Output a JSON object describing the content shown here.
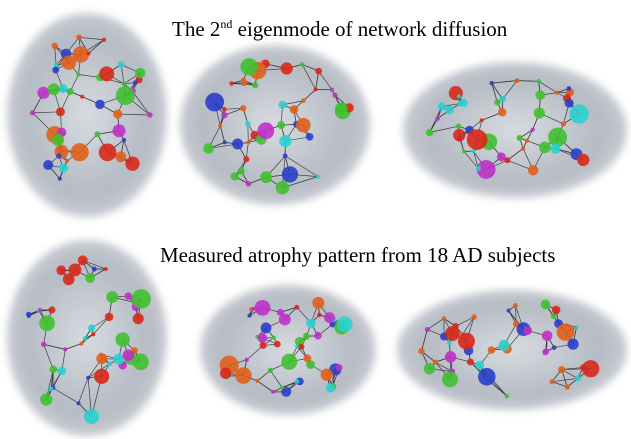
{
  "panels": [
    {
      "title": {
        "main": "The 2",
        "superscript": "nd",
        "rest": " eigenmode of network diffusion"
      }
    },
    {
      "title": {
        "main": "Measured atrophy pattern from 18 AD subjects"
      }
    }
  ]
}
